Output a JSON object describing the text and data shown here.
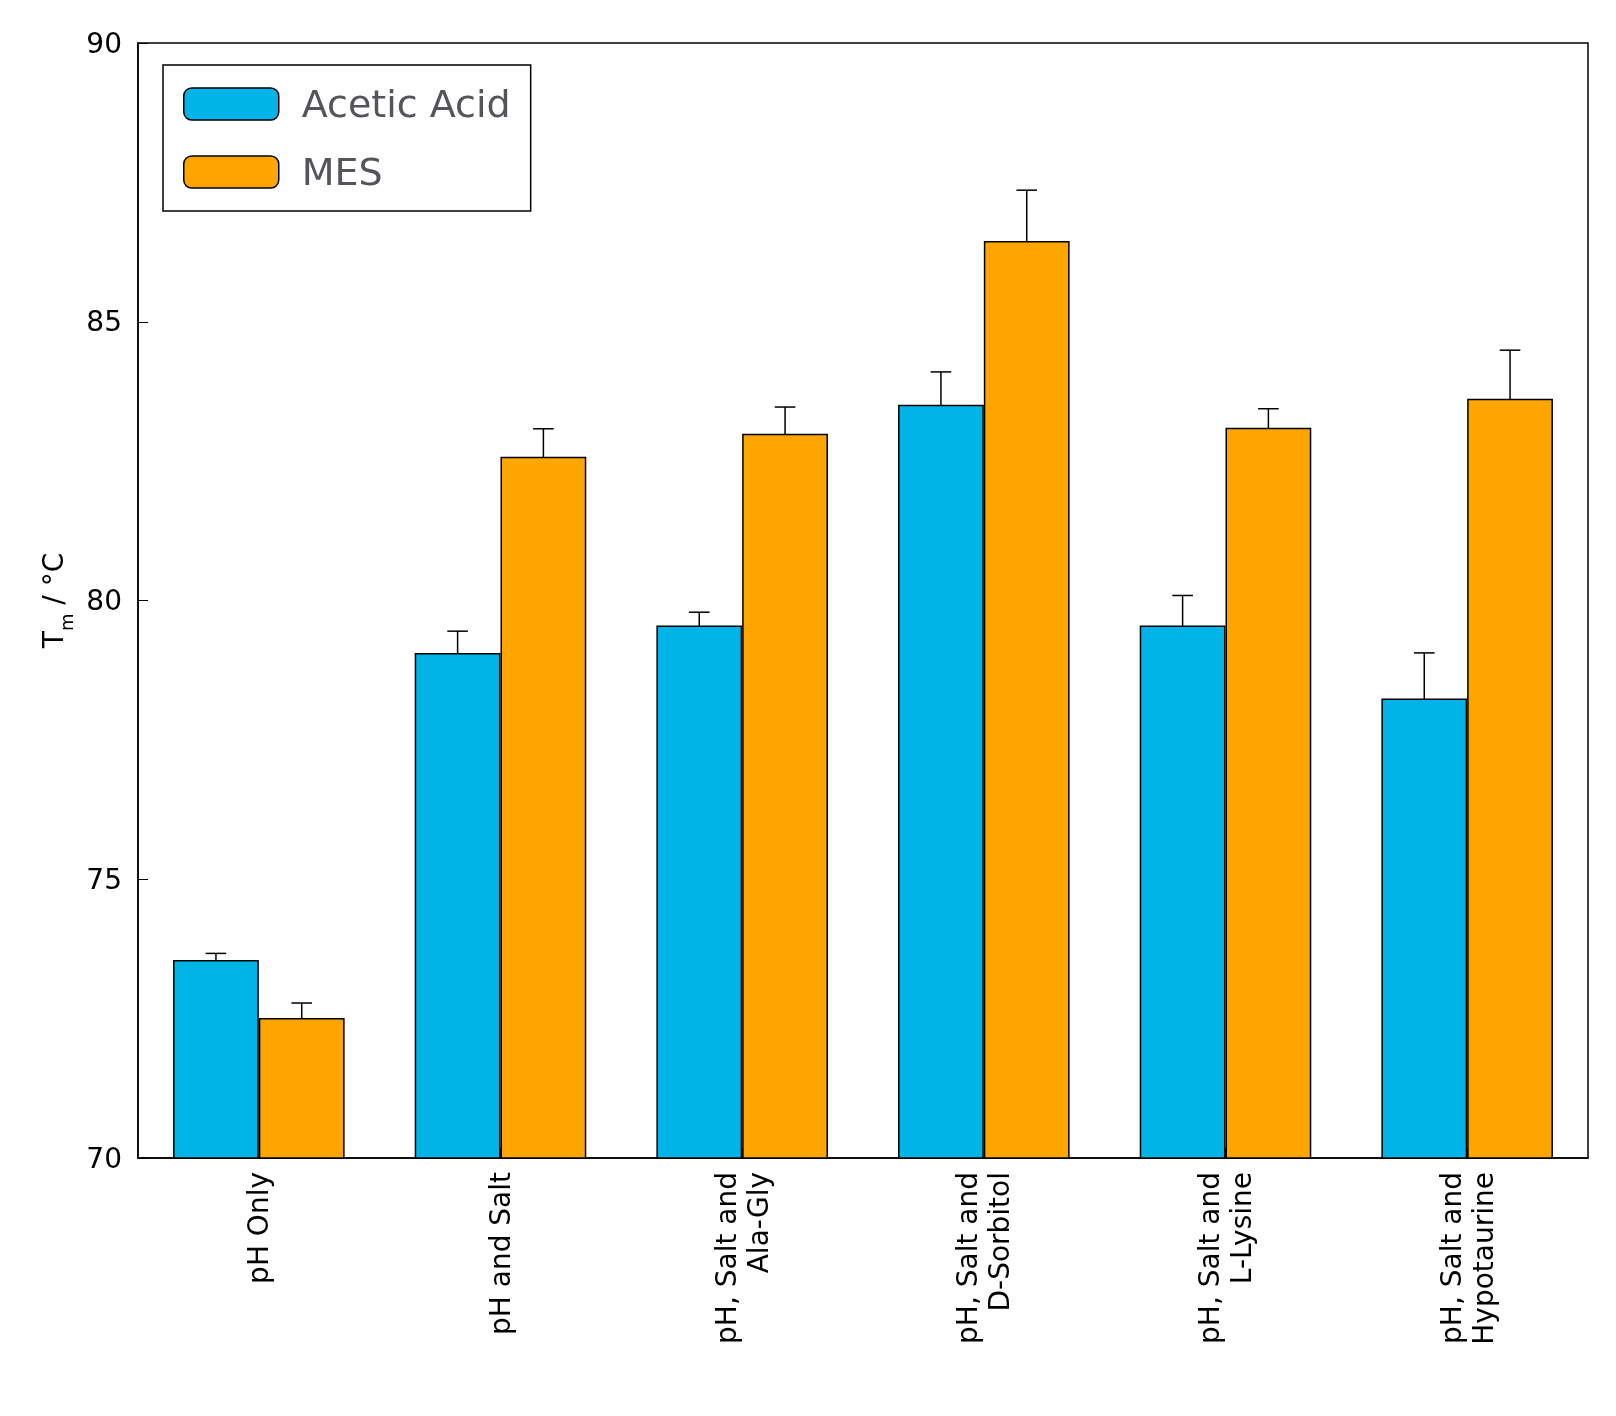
{
  "chart_data": {
    "type": "bar",
    "ylabel": "T$_{m}$ / °C",
    "categories": [
      "pH Only",
      "pH and Salt",
      "pH, Salt and\nAla-Gly",
      "pH, Salt and\nD-Sorbitol",
      "pH, Salt and\nL-Lysine",
      "pH, Salt and\nHypotaurine"
    ],
    "series": [
      {
        "name": "Acetic Acid",
        "color": "#00b4e8",
        "values": [
          73.55,
          79.06,
          79.55,
          83.51,
          79.55,
          78.24
        ],
        "errors": [
          0.12,
          0.39,
          0.24,
          0.59,
          0.54,
          0.82
        ]
      },
      {
        "name": "MES",
        "color": "#ffa500",
        "values": [
          72.51,
          82.58,
          82.99,
          86.45,
          83.1,
          83.62
        ],
        "errors": [
          0.27,
          0.5,
          0.48,
          0.91,
          0.34,
          0.87
        ]
      }
    ],
    "ylim": [
      70,
      90
    ],
    "yticks": [
      70,
      75,
      80,
      85,
      90
    ],
    "grid": false,
    "legend": "top left"
  }
}
